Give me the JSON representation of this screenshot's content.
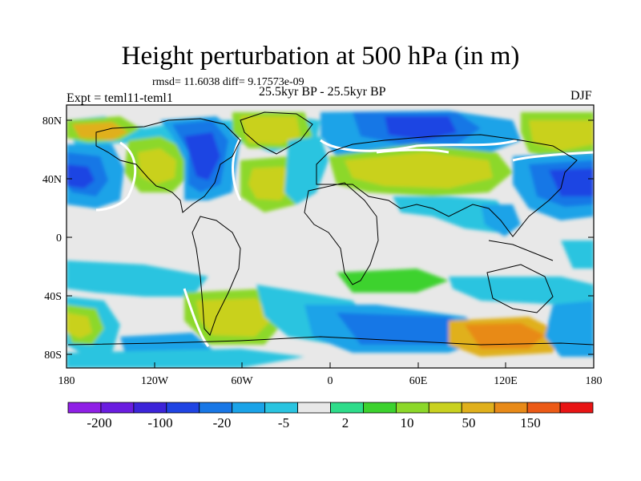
{
  "title": "Height perturbation at 500 hPa (in m)",
  "stats": "rmsd= 11.6038 diff= 9.17573e-09",
  "period": "25.5kyr BP - 25.5kyr BP",
  "experiment": "Expt = teml11-teml1",
  "season": "DJF",
  "map": {
    "lat_labels": [
      "80N",
      "40N",
      "0",
      "40S",
      "80S"
    ],
    "lon_labels": [
      "180",
      "120W",
      "60W",
      "0",
      "60E",
      "120E",
      "180"
    ]
  },
  "colorbar": {
    "labels": [
      "-200",
      "-100",
      "-20",
      "-5",
      "2",
      "10",
      "50",
      "150"
    ],
    "colors": [
      "#8f1fe6",
      "#6a1de0",
      "#3c24d9",
      "#1f44e3",
      "#1877e6",
      "#1aa3e8",
      "#2ac4e0",
      "#e8e8e8",
      "#2edc8a",
      "#3cd22e",
      "#8cd82a",
      "#c9d11f",
      "#e0b01c",
      "#e88a18",
      "#ec5a16",
      "#e81414"
    ]
  },
  "colors": {
    "land_outline": "#000000",
    "background": "#ffffff"
  }
}
